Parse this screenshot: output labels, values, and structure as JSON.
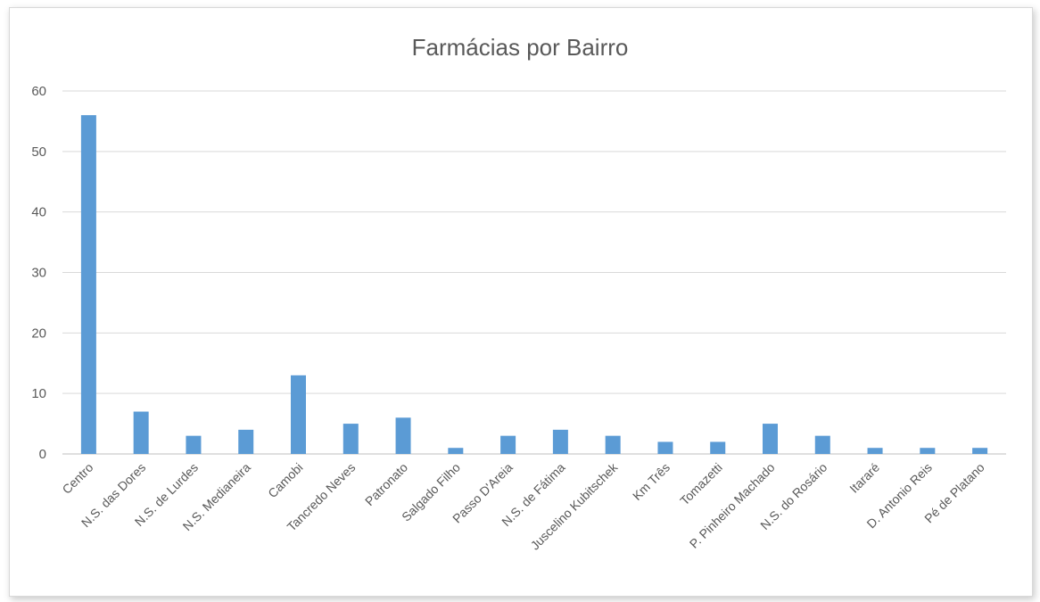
{
  "chart_data": {
    "type": "bar",
    "title": "Farmácias por Bairro",
    "xlabel": "",
    "ylabel": "",
    "ylim": [
      0,
      60
    ],
    "yticks": [
      0,
      10,
      20,
      30,
      40,
      50,
      60
    ],
    "grid": true,
    "legend": "none",
    "bar_color": "#5b9bd5",
    "categories": [
      "Centro",
      "N.S. das Dores",
      "N.S. de Lurdes",
      "N.S. Medianeira",
      "Camobi",
      "Tancredo Neves",
      "Patronato",
      "Salgado Filho",
      "Passo D'Areia",
      "N.S. de Fátima",
      "Juscelino Kubitschek",
      "Km Três",
      "Tomazetti",
      "P. Pinheiro Machado",
      "N.S. do Rosário",
      "Itararé",
      "D. Antonio Reis",
      "Pé de Platano"
    ],
    "values": [
      56,
      7,
      3,
      4,
      13,
      5,
      6,
      1,
      3,
      4,
      3,
      2,
      2,
      5,
      3,
      1,
      1,
      1
    ]
  }
}
